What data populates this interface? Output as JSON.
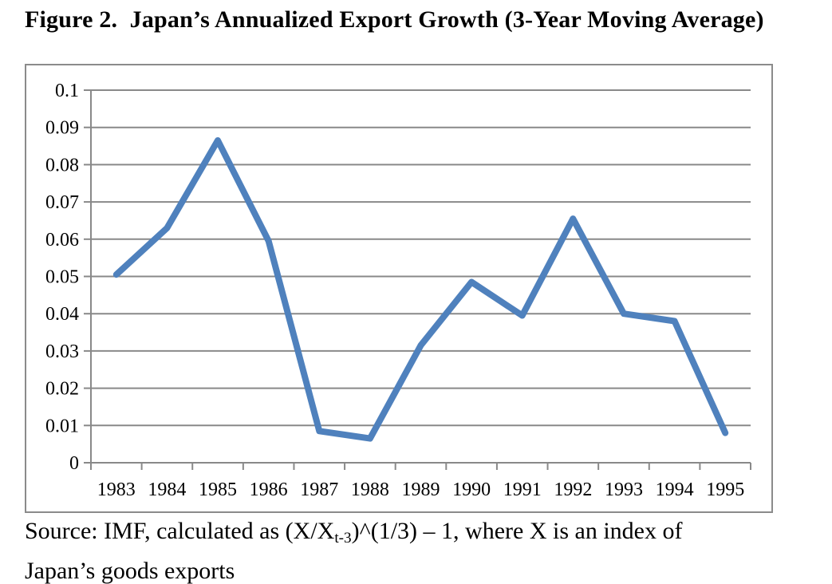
{
  "figure": {
    "title": "Figure 2.  Japan’s Annualized Export Growth (3-Year Moving Average)",
    "source": {
      "line1_prefix": "Source: IMF, calculated as (X/X",
      "line1_sub": "t-3",
      "line1_suffix": ")^(1/3) – 1, where X is an index of",
      "line2": "Japan’s goods exports"
    }
  },
  "chart_data": {
    "type": "line",
    "title": "Figure 2.  Japan’s Annualized Export Growth (3-Year Moving Average)",
    "categories": [
      "1983",
      "1984",
      "1985",
      "1986",
      "1987",
      "1988",
      "1989",
      "1990",
      "1991",
      "1992",
      "1993",
      "1994",
      "1995"
    ],
    "series": [
      {
        "name": "Japan annualized export growth, 3-year moving average",
        "values": [
          0.0505,
          0.063,
          0.0865,
          0.0595,
          0.0085,
          0.0065,
          0.0315,
          0.0485,
          0.0395,
          0.0655,
          0.04,
          0.038,
          0.008
        ]
      }
    ],
    "xlabel": "",
    "ylabel": "",
    "ylim": [
      0,
      0.1
    ],
    "y_tick_step": 0.01,
    "y_tick_labels_top_to_bottom": [
      "0.1",
      "0.09",
      "0.08",
      "0.07",
      "0.06",
      "0.05",
      "0.04",
      "0.03",
      "0.02",
      "0.01",
      "0"
    ],
    "grid": true,
    "legend": "none",
    "colors": {
      "line": "#4F81BD",
      "gridline": "#898989",
      "axis": "#898989",
      "frame_border": "#8B8B8B",
      "text": "#000000",
      "background": "#FFFFFF"
    }
  }
}
